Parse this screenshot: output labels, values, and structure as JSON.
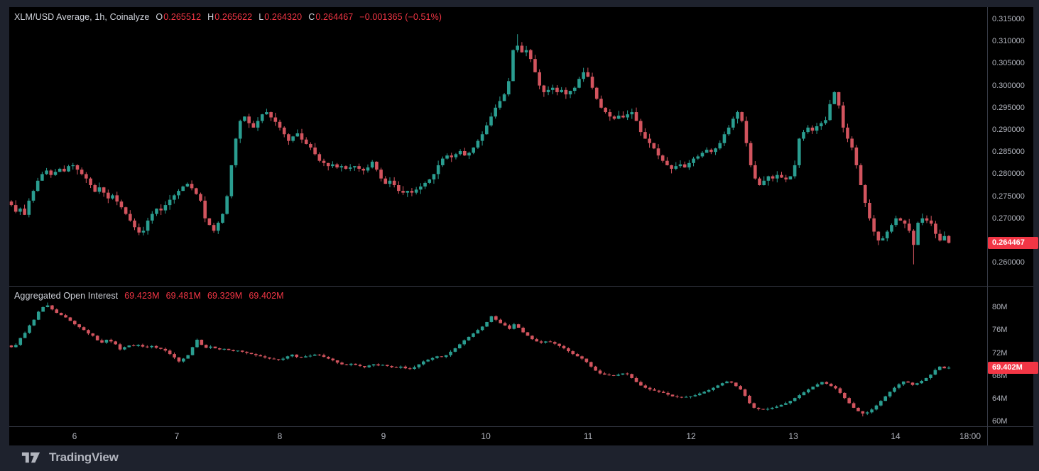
{
  "price_pane": {
    "legend": {
      "title": "XLM/USD Average, 1h, Coinalyze",
      "o_label": "O",
      "o_value": "0.265512",
      "h_label": "H",
      "h_value": "0.265622",
      "l_label": "L",
      "l_value": "0.264320",
      "c_label": "C",
      "c_value": "0.264467",
      "change": "−0.001365 (−0.51%)"
    },
    "last_price": 0.264467,
    "last_price_label": "0.264467"
  },
  "oi_pane": {
    "legend": {
      "title": "Aggregated Open Interest",
      "values": [
        "69.423M",
        "69.481M",
        "69.329M",
        "69.402M"
      ]
    },
    "last_value": 69.402,
    "last_value_label": "69.402M"
  },
  "time_axis": {
    "labels": [
      "6",
      "7",
      "8",
      "9",
      "10",
      "11",
      "12",
      "13",
      "14",
      "18:00"
    ],
    "fracs": [
      0.0674,
      0.1765,
      0.2864,
      0.397,
      0.5061,
      0.6152,
      0.725,
      0.8342,
      0.9432,
      1.0227
    ]
  },
  "footer": {
    "logo_text": "TradingView"
  },
  "colors": {
    "background": "#1e222d",
    "chart_bg": "#000000",
    "candle_up": "#2a9d90",
    "candle_down": "#d2545e",
    "accent_down": "#f23645",
    "text_primary": "#d1d4dc",
    "text_secondary": "#b2b5be",
    "separator": "#363a45",
    "badge_text": "#ffffff"
  },
  "chart_data": [
    {
      "pane": "price",
      "type": "candlestick",
      "title": "XLM/USD Average, 1h, Coinalyze",
      "timeframe": "1h",
      "source": "Coinalyze",
      "ohlc": {
        "open": 0.265512,
        "high": 0.265622,
        "low": 0.26432,
        "close": 0.264467,
        "change": -0.001365,
        "change_pct": -0.51
      },
      "ylim": [
        0.25475,
        0.31772
      ],
      "tick_values": [
        0.315,
        0.31,
        0.305,
        0.3,
        0.295,
        0.29,
        0.285,
        0.28,
        0.275,
        0.27,
        0.26
      ],
      "tick_labels": [
        "0.315000",
        "0.310000",
        "0.305000",
        "0.300000",
        "0.295000",
        "0.290000",
        "0.285000",
        "0.280000",
        "0.275000",
        "0.270000",
        "0.260000"
      ],
      "first_open": 0.2738,
      "wick": 0.0011,
      "peak_high": 0.3116,
      "trough_low": 0.2596,
      "closes": [
        0.273,
        0.2715,
        0.2722,
        0.2708,
        0.274,
        0.2762,
        0.2785,
        0.28,
        0.2808,
        0.2798,
        0.2805,
        0.2812,
        0.2806,
        0.2818,
        0.282,
        0.281,
        0.28,
        0.279,
        0.2775,
        0.276,
        0.277,
        0.2758,
        0.2745,
        0.2752,
        0.2738,
        0.2725,
        0.271,
        0.2695,
        0.268,
        0.2668,
        0.2672,
        0.2695,
        0.271,
        0.2722,
        0.2718,
        0.273,
        0.2742,
        0.2752,
        0.2762,
        0.2772,
        0.2778,
        0.2768,
        0.2755,
        0.274,
        0.27,
        0.2685,
        0.2672,
        0.269,
        0.271,
        0.275,
        0.282,
        0.288,
        0.292,
        0.293,
        0.2915,
        0.2905,
        0.292,
        0.2935,
        0.294,
        0.2928,
        0.2918,
        0.2905,
        0.289,
        0.2875,
        0.2885,
        0.2892,
        0.2878,
        0.2868,
        0.286,
        0.2845,
        0.283,
        0.2825,
        0.2818,
        0.2822,
        0.2815,
        0.2818,
        0.2812,
        0.2815,
        0.2818,
        0.2812,
        0.2808,
        0.2815,
        0.2828,
        0.281,
        0.279,
        0.2778,
        0.2785,
        0.2775,
        0.2762,
        0.2758,
        0.2762,
        0.2758,
        0.2765,
        0.2772,
        0.278,
        0.2788,
        0.28,
        0.282,
        0.2835,
        0.2842,
        0.2838,
        0.2845,
        0.2852,
        0.2842,
        0.2848,
        0.286,
        0.2875,
        0.289,
        0.291,
        0.293,
        0.295,
        0.2965,
        0.298,
        0.301,
        0.308,
        0.309,
        0.3075,
        0.308,
        0.306,
        0.303,
        0.3,
        0.2985,
        0.299,
        0.2995,
        0.2985,
        0.299,
        0.298,
        0.2988,
        0.2995,
        0.3015,
        0.303,
        0.302,
        0.2995,
        0.297,
        0.295,
        0.294,
        0.293,
        0.2925,
        0.2932,
        0.2928,
        0.2935,
        0.294,
        0.292,
        0.2895,
        0.288,
        0.287,
        0.2858,
        0.2842,
        0.283,
        0.282,
        0.2812,
        0.2818,
        0.2822,
        0.2815,
        0.2825,
        0.2835,
        0.284,
        0.2848,
        0.2855,
        0.285,
        0.2858,
        0.287,
        0.289,
        0.2905,
        0.2925,
        0.294,
        0.292,
        0.287,
        0.282,
        0.279,
        0.2775,
        0.2785,
        0.2795,
        0.279,
        0.2798,
        0.2792,
        0.2788,
        0.2795,
        0.282,
        0.288,
        0.2895,
        0.2905,
        0.2898,
        0.2908,
        0.2915,
        0.2922,
        0.2958,
        0.2985,
        0.2955,
        0.2905,
        0.288,
        0.286,
        0.282,
        0.2775,
        0.2735,
        0.27,
        0.267,
        0.265,
        0.2655,
        0.267,
        0.2685,
        0.27,
        0.2695,
        0.2688,
        0.2672,
        0.264,
        0.269,
        0.27,
        0.2695,
        0.2688,
        0.2665,
        0.265,
        0.266,
        0.264467
      ]
    },
    {
      "pane": "oi",
      "type": "candlestick",
      "title": "Aggregated Open Interest",
      "unit": "M",
      "display_values": [
        69.423,
        69.481,
        69.329,
        69.402
      ],
      "ylim": [
        59.16,
        83.72
      ],
      "tick_values": [
        80,
        76,
        72,
        68,
        64,
        60
      ],
      "tick_labels": [
        "80M",
        "76M",
        "72M",
        "68M",
        "64M",
        "60M"
      ],
      "first_open": 73.3,
      "wick": 0.28,
      "peak_high": 80.8,
      "trough_low": 60.9,
      "closes": [
        73.0,
        73.4,
        74.6,
        75.5,
        76.8,
        77.8,
        79.2,
        80.0,
        80.3,
        79.6,
        79.0,
        78.6,
        78.2,
        77.6,
        77.0,
        76.5,
        76.0,
        75.4,
        75.0,
        74.2,
        73.8,
        74.3,
        74.0,
        73.5,
        72.6,
        73.0,
        73.3,
        73.2,
        73.4,
        73.1,
        73.0,
        73.2,
        72.9,
        72.7,
        72.4,
        71.8,
        71.2,
        70.5,
        71.0,
        71.6,
        73.0,
        74.3,
        73.4,
        72.9,
        73.1,
        72.8,
        72.6,
        72.7,
        72.5,
        72.3,
        72.4,
        72.2,
        72.0,
        71.8,
        71.6,
        71.4,
        71.2,
        71.0,
        70.9,
        70.8,
        71.0,
        71.4,
        71.7,
        71.3,
        71.2,
        71.4,
        71.5,
        71.7,
        71.6,
        71.3,
        71.0,
        70.7,
        70.3,
        70.0,
        69.9,
        70.1,
        69.9,
        69.7,
        69.5,
        69.8,
        70.0,
        69.8,
        69.9,
        69.7,
        69.5,
        69.4,
        69.6,
        69.3,
        69.2,
        69.5,
        70.0,
        70.5,
        70.8,
        71.1,
        71.4,
        71.3,
        71.6,
        72.2,
        72.8,
        73.5,
        74.2,
        74.8,
        75.4,
        76.0,
        76.6,
        77.4,
        78.4,
        77.8,
        77.2,
        76.8,
        76.2,
        77.0,
        76.4,
        75.6,
        75.0,
        74.4,
        74.0,
        73.8,
        74.0,
        73.9,
        73.6,
        73.2,
        72.8,
        72.3,
        71.8,
        71.4,
        71.0,
        70.4,
        69.6,
        68.9,
        68.4,
        68.2,
        68.1,
        68.0,
        68.2,
        68.4,
        68.3,
        67.6,
        66.9,
        66.3,
        65.9,
        65.6,
        65.4,
        65.2,
        65.0,
        64.7,
        64.4,
        64.3,
        64.2,
        64.3,
        64.4,
        64.6,
        64.9,
        65.2,
        65.5,
        65.9,
        66.3,
        66.7,
        67.0,
        66.8,
        66.2,
        65.6,
        64.5,
        63.2,
        62.4,
        62.2,
        62.1,
        62.2,
        62.4,
        62.6,
        62.9,
        63.2,
        63.6,
        64.1,
        64.6,
        65.1,
        65.6,
        66.1,
        66.5,
        66.9,
        66.6,
        66.2,
        65.8,
        65.0,
        64.1,
        63.2,
        62.4,
        61.8,
        61.4,
        61.6,
        62.1,
        62.8,
        63.6,
        64.4,
        65.2,
        65.9,
        66.5,
        67.0,
        66.8,
        66.4,
        66.7,
        67.1,
        67.6,
        68.2,
        69.0,
        69.6,
        69.3,
        69.402
      ]
    }
  ]
}
